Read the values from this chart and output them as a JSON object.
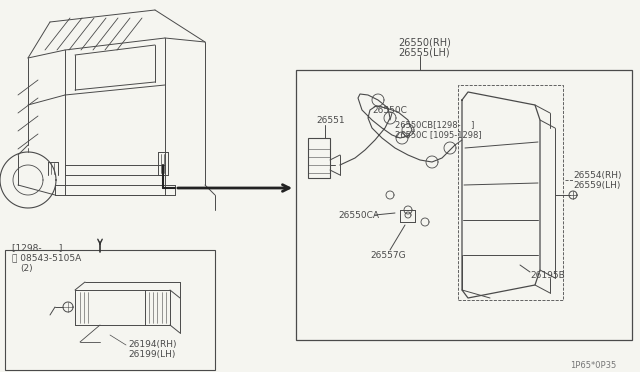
{
  "bg_color": "#f5f5f0",
  "line_color": "#4a4a4a",
  "text_color": "#4a4a4a",
  "diagram_number": "1P65*0P35",
  "box_label_1": "26550(RH)",
  "box_label_2": "26555(LH)",
  "label_26551": "26551",
  "label_26550C": "26550C",
  "label_26550CB": "26550CB[1298-    ]",
  "label_26550C2": "26550C [1095-1298]",
  "label_26554RH": "26554(RH)",
  "label_26559LH": "26559(LH)",
  "label_26550CA": "26550CA",
  "label_26557G": "26557G",
  "label_26195B": "26195B",
  "inset_date": "[1298-      ]",
  "inset_screw": "S 08543-5105A",
  "inset_qty": "(2)",
  "label_26194RH": "26194(RH)",
  "label_26199LH": "26199(LH)"
}
